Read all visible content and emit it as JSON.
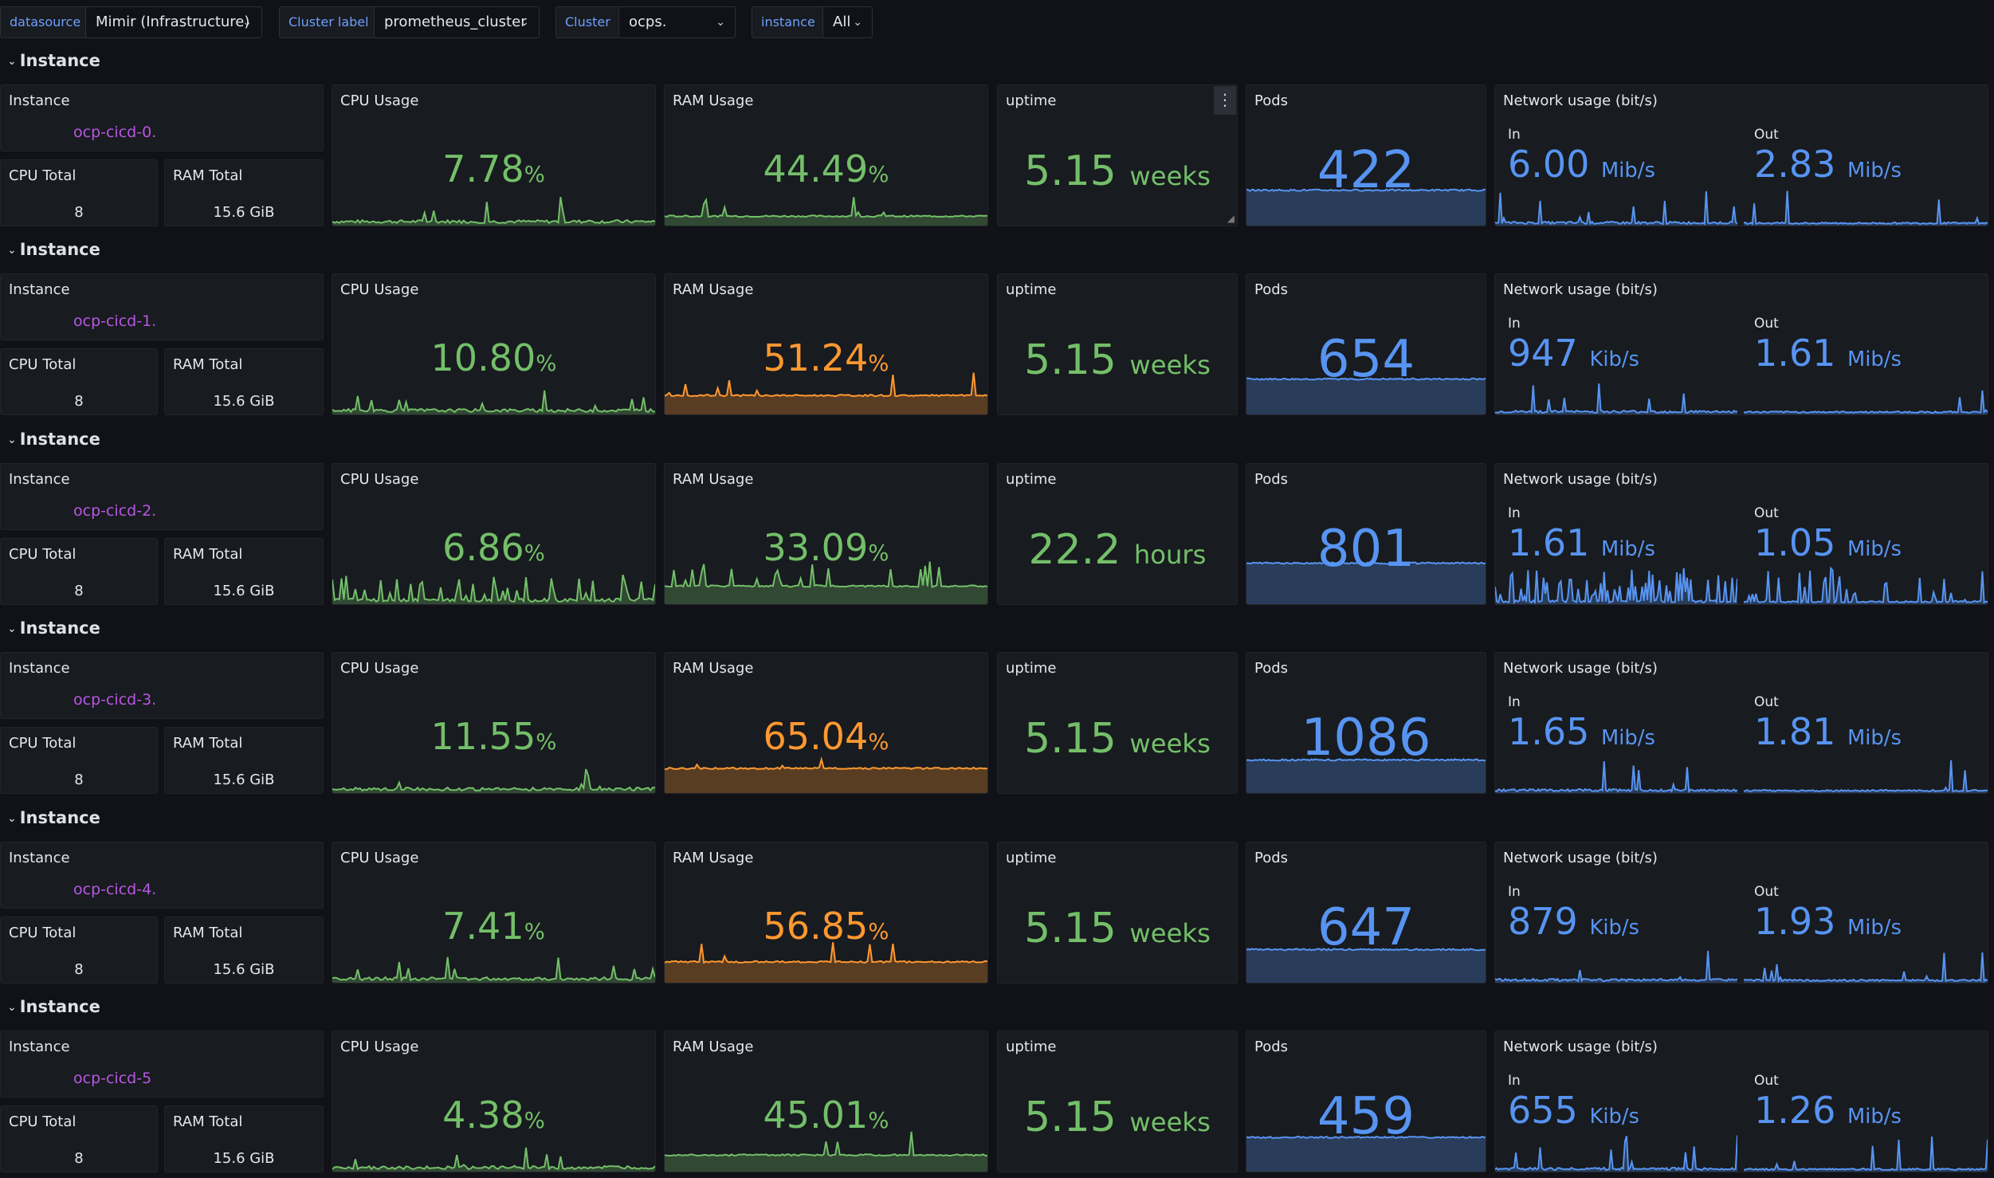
{
  "variables": [
    {
      "label": "datasource",
      "value": "Mimir (Infrastructure)"
    },
    {
      "label": "Cluster label",
      "value": "prometheus_cluster"
    },
    {
      "label": "Cluster",
      "value": "ocps."
    },
    {
      "label": "instance",
      "value": "All"
    }
  ],
  "titles": {
    "row": "Instance",
    "instance": "Instance",
    "cpu_total": "CPU Total",
    "ram_total": "RAM Total",
    "cpu": "CPU Usage",
    "ram": "RAM Usage",
    "uptime": "uptime",
    "pods": "Pods",
    "network": "Network usage (bit/s)",
    "net_in": "In",
    "net_out": "Out"
  },
  "icons": {
    "collapse": "chevron-down-icon",
    "menu": "kebab-menu-icon",
    "resize": "resize-handle-icon"
  },
  "colors": {
    "green": "#73bf69",
    "orange": "#ff9830",
    "blue": "#5794f2",
    "purple": "#b857e4",
    "label_blue": "#6e9fff"
  },
  "rows": [
    {
      "instance": "ocp-cicd-0.",
      "cpu_total": "8",
      "ram_total": "15.6 GiB",
      "cpu": {
        "value": "7.78",
        "unit": "%"
      },
      "ram": {
        "value": "44.49",
        "unit": "%",
        "color": "green",
        "fill_level": 0.18
      },
      "uptime": {
        "value": "5.15",
        "unit": "weeks"
      },
      "pods": {
        "value": "422",
        "fill_level": 0.62
      },
      "net_in": {
        "value": "6.00",
        "unit": "Mib/s"
      },
      "net_out": {
        "value": "2.83",
        "unit": "Mib/s"
      }
    },
    {
      "instance": "ocp-cicd-1.",
      "cpu_total": "8",
      "ram_total": "15.6 GiB",
      "cpu": {
        "value": "10.80",
        "unit": "%"
      },
      "ram": {
        "value": "51.24",
        "unit": "%",
        "color": "orange",
        "fill_level": 0.38
      },
      "uptime": {
        "value": "5.15",
        "unit": "weeks"
      },
      "pods": {
        "value": "654",
        "fill_level": 0.62
      },
      "net_in": {
        "value": "947",
        "unit": "Kib/s"
      },
      "net_out": {
        "value": "1.61",
        "unit": "Mib/s"
      }
    },
    {
      "instance": "ocp-cicd-2.",
      "cpu_total": "8",
      "ram_total": "15.6 GiB",
      "cpu": {
        "value": "6.86",
        "unit": "%"
      },
      "ram": {
        "value": "33.09",
        "unit": "%",
        "color": "green",
        "fill_level": 0.36
      },
      "uptime": {
        "value": "22.2",
        "unit": "hours"
      },
      "pods": {
        "value": "801",
        "fill_level": 0.72
      },
      "net_in": {
        "value": "1.61",
        "unit": "Mib/s"
      },
      "net_out": {
        "value": "1.05",
        "unit": "Mib/s"
      }
    },
    {
      "instance": "ocp-cicd-3.",
      "cpu_total": "8",
      "ram_total": "15.6 GiB",
      "cpu": {
        "value": "11.55",
        "unit": "%"
      },
      "ram": {
        "value": "65.04",
        "unit": "%",
        "color": "orange",
        "fill_level": 0.5
      },
      "uptime": {
        "value": "5.15",
        "unit": "weeks"
      },
      "pods": {
        "value": "1086",
        "fill_level": 0.58
      },
      "net_in": {
        "value": "1.65",
        "unit": "Mib/s"
      },
      "net_out": {
        "value": "1.81",
        "unit": "Mib/s"
      }
    },
    {
      "instance": "ocp-cicd-4.",
      "cpu_total": "8",
      "ram_total": "15.6 GiB",
      "cpu": {
        "value": "7.41",
        "unit": "%"
      },
      "ram": {
        "value": "56.85",
        "unit": "%",
        "color": "orange",
        "fill_level": 0.42
      },
      "uptime": {
        "value": "5.15",
        "unit": "weeks"
      },
      "pods": {
        "value": "647",
        "fill_level": 0.58
      },
      "net_in": {
        "value": "879",
        "unit": "Kib/s"
      },
      "net_out": {
        "value": "1.93",
        "unit": "Mib/s"
      }
    },
    {
      "instance": "ocp-cicd-5",
      "cpu_total": "8",
      "ram_total": "15.6 GiB",
      "cpu": {
        "value": "4.38",
        "unit": "%"
      },
      "ram": {
        "value": "45.01",
        "unit": "%",
        "color": "green",
        "fill_level": 0.33
      },
      "uptime": {
        "value": "5.15",
        "unit": "weeks"
      },
      "pods": {
        "value": "459",
        "fill_level": 0.6
      },
      "net_in": {
        "value": "655",
        "unit": "Kib/s"
      },
      "net_out": {
        "value": "1.26",
        "unit": "Mib/s"
      }
    }
  ]
}
